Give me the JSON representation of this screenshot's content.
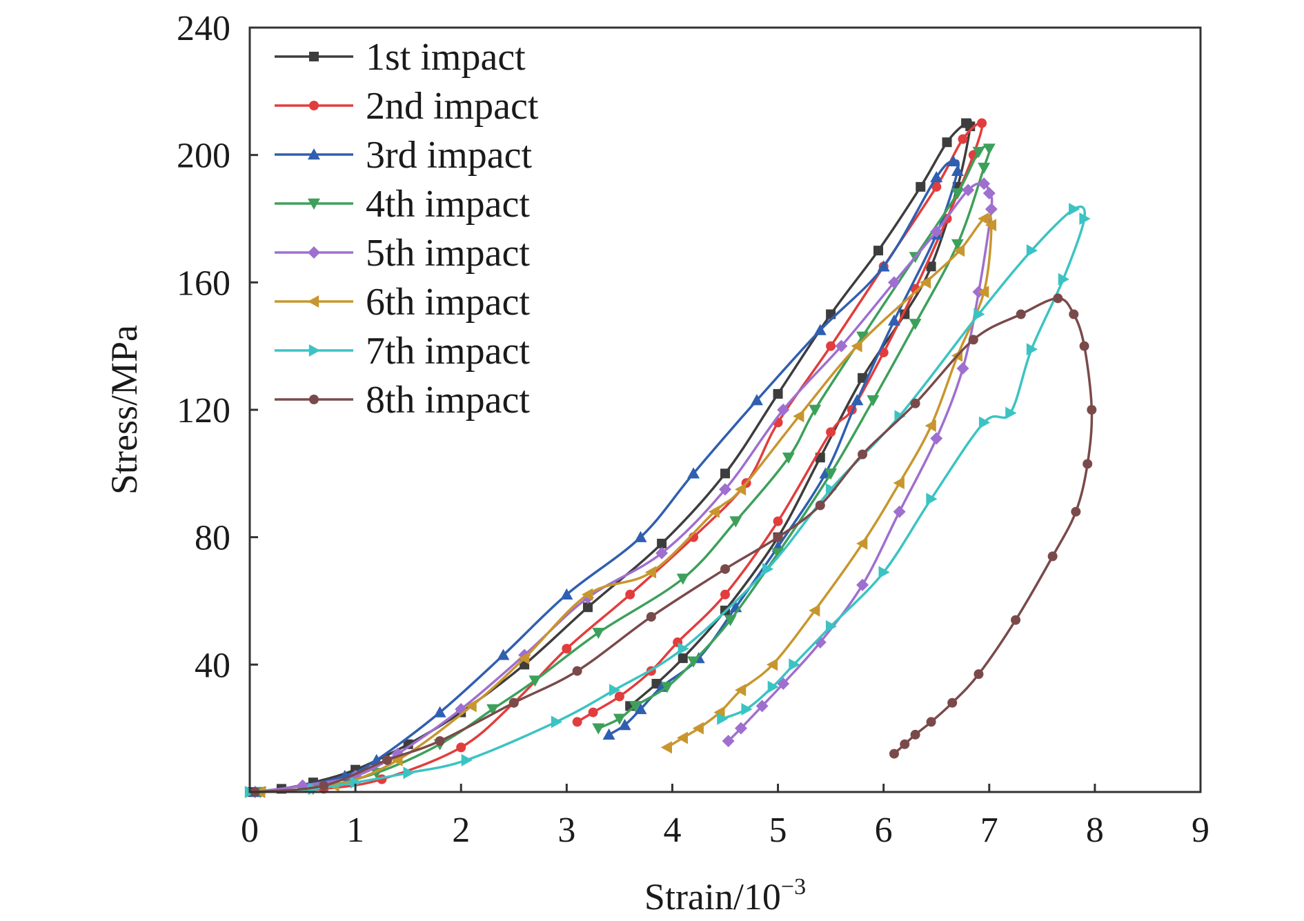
{
  "chart_data": {
    "type": "line",
    "xlabel": "Strain/10",
    "xlabel_exponent": "−3",
    "ylabel": "Stress/MPa",
    "xlim": [
      0,
      9
    ],
    "ylim": [
      0,
      240
    ],
    "xticks": [
      "0",
      "1",
      "2",
      "3",
      "4",
      "5",
      "6",
      "7",
      "8",
      "9"
    ],
    "yticks": [
      "40",
      "80",
      "120",
      "160",
      "200",
      "240"
    ],
    "grid": false,
    "legend_position": "top-left",
    "series": [
      {
        "name": "1st impact",
        "color": "#3d3d3d",
        "marker": "square",
        "points": [
          [
            0.0,
            0.0
          ],
          [
            0.3,
            1.0
          ],
          [
            0.6,
            3.0
          ],
          [
            1.0,
            7.0
          ],
          [
            1.5,
            15.0
          ],
          [
            2.0,
            25.0
          ],
          [
            2.6,
            40.0
          ],
          [
            3.2,
            58.0
          ],
          [
            3.9,
            78.0
          ],
          [
            4.5,
            100.0
          ],
          [
            5.0,
            125.0
          ],
          [
            5.5,
            150.0
          ],
          [
            5.95,
            170.0
          ],
          [
            6.35,
            190.0
          ],
          [
            6.6,
            204.0
          ],
          [
            6.78,
            210.0
          ],
          [
            6.82,
            209.0
          ],
          [
            6.7,
            190.0
          ],
          [
            6.45,
            165.0
          ],
          [
            6.2,
            150.0
          ],
          [
            5.8,
            130.0
          ],
          [
            5.4,
            105.0
          ],
          [
            5.0,
            80.0
          ],
          [
            4.5,
            57.0
          ],
          [
            4.1,
            42.0
          ],
          [
            3.85,
            34.0
          ],
          [
            3.6,
            27.0
          ]
        ]
      },
      {
        "name": "2nd impact",
        "color": "#e23d3d",
        "marker": "circle",
        "points": [
          [
            0.1,
            0.0
          ],
          [
            0.7,
            1.0
          ],
          [
            1.25,
            4.0
          ],
          [
            2.0,
            14.0
          ],
          [
            2.5,
            28.0
          ],
          [
            3.0,
            45.0
          ],
          [
            3.6,
            62.0
          ],
          [
            4.2,
            80.0
          ],
          [
            4.7,
            97.0
          ],
          [
            5.0,
            116.0
          ],
          [
            5.5,
            140.0
          ],
          [
            6.0,
            165.0
          ],
          [
            6.5,
            190.0
          ],
          [
            6.75,
            205.0
          ],
          [
            6.93,
            210.0
          ],
          [
            6.85,
            200.0
          ],
          [
            6.6,
            180.0
          ],
          [
            6.3,
            158.0
          ],
          [
            6.0,
            138.0
          ],
          [
            5.7,
            120.0
          ],
          [
            5.5,
            113.0
          ],
          [
            5.0,
            85.0
          ],
          [
            4.5,
            62.0
          ],
          [
            4.05,
            47.0
          ],
          [
            3.8,
            38.0
          ],
          [
            3.5,
            30.0
          ],
          [
            3.25,
            25.0
          ],
          [
            3.1,
            22.0
          ]
        ]
      },
      {
        "name": "3rd impact",
        "color": "#2f5fb0",
        "marker": "triangle-up",
        "points": [
          [
            0.05,
            0.0
          ],
          [
            0.5,
            2.0
          ],
          [
            0.9,
            5.0
          ],
          [
            1.2,
            10.0
          ],
          [
            1.8,
            25.0
          ],
          [
            2.4,
            43.0
          ],
          [
            3.0,
            62.0
          ],
          [
            3.7,
            80.0
          ],
          [
            4.2,
            100.0
          ],
          [
            4.8,
            123.0
          ],
          [
            5.4,
            145.0
          ],
          [
            6.0,
            165.0
          ],
          [
            6.5,
            193.0
          ],
          [
            6.66,
            198.0
          ],
          [
            6.7,
            195.0
          ],
          [
            6.5,
            175.0
          ],
          [
            6.1,
            148.0
          ],
          [
            5.75,
            123.0
          ],
          [
            5.45,
            100.0
          ],
          [
            5.0,
            77.0
          ],
          [
            4.6,
            58.0
          ],
          [
            4.25,
            42.0
          ],
          [
            3.9,
            33.0
          ],
          [
            3.7,
            26.0
          ],
          [
            3.55,
            21.0
          ],
          [
            3.4,
            18.0
          ]
        ]
      },
      {
        "name": "4th impact",
        "color": "#3da05a",
        "marker": "triangle-down",
        "points": [
          [
            0.1,
            0.0
          ],
          [
            0.6,
            1.0
          ],
          [
            1.2,
            6.0
          ],
          [
            1.8,
            15.0
          ],
          [
            2.3,
            26.0
          ],
          [
            2.7,
            35.0
          ],
          [
            3.3,
            50.0
          ],
          [
            4.1,
            67.0
          ],
          [
            4.6,
            85.0
          ],
          [
            5.1,
            105.0
          ],
          [
            5.35,
            120.0
          ],
          [
            5.8,
            143.0
          ],
          [
            6.3,
            168.0
          ],
          [
            6.7,
            188.0
          ],
          [
            6.9,
            201.0
          ],
          [
            7.0,
            202.0
          ],
          [
            6.95,
            196.0
          ],
          [
            6.7,
            172.0
          ],
          [
            6.3,
            147.0
          ],
          [
            5.9,
            123.0
          ],
          [
            5.5,
            100.0
          ],
          [
            5.0,
            75.0
          ],
          [
            4.55,
            54.0
          ],
          [
            4.2,
            41.0
          ],
          [
            3.95,
            33.0
          ],
          [
            3.65,
            27.0
          ],
          [
            3.5,
            23.0
          ],
          [
            3.3,
            20.0
          ]
        ]
      },
      {
        "name": "5th impact",
        "color": "#9f6fcf",
        "marker": "diamond",
        "points": [
          [
            0.05,
            0.0
          ],
          [
            0.5,
            2.0
          ],
          [
            1.0,
            5.0
          ],
          [
            1.4,
            12.0
          ],
          [
            2.0,
            26.0
          ],
          [
            2.6,
            43.0
          ],
          [
            3.2,
            61.0
          ],
          [
            3.9,
            75.0
          ],
          [
            4.5,
            95.0
          ],
          [
            5.05,
            120.0
          ],
          [
            5.6,
            140.0
          ],
          [
            6.1,
            160.0
          ],
          [
            6.5,
            176.0
          ],
          [
            6.8,
            189.0
          ],
          [
            6.95,
            191.0
          ],
          [
            7.0,
            188.0
          ],
          [
            7.02,
            183.0
          ],
          [
            6.9,
            157.0
          ],
          [
            6.75,
            133.0
          ],
          [
            6.5,
            111.0
          ],
          [
            6.15,
            88.0
          ],
          [
            5.8,
            65.0
          ],
          [
            5.4,
            47.0
          ],
          [
            5.05,
            34.0
          ],
          [
            4.85,
            27.0
          ],
          [
            4.65,
            20.0
          ],
          [
            4.53,
            16.0
          ]
        ]
      },
      {
        "name": "6th impact",
        "color": "#c8962e",
        "marker": "triangle-left",
        "points": [
          [
            0.1,
            0.0
          ],
          [
            0.8,
            2.0
          ],
          [
            1.4,
            10.0
          ],
          [
            2.1,
            27.0
          ],
          [
            2.6,
            42.0
          ],
          [
            3.2,
            62.0
          ],
          [
            3.8,
            69.0
          ],
          [
            4.4,
            88.0
          ],
          [
            4.65,
            95.0
          ],
          [
            5.2,
            118.0
          ],
          [
            5.75,
            140.0
          ],
          [
            6.4,
            160.0
          ],
          [
            6.72,
            170.0
          ],
          [
            6.95,
            180.0
          ],
          [
            7.02,
            178.0
          ],
          [
            6.95,
            157.0
          ],
          [
            6.7,
            137.0
          ],
          [
            6.45,
            115.0
          ],
          [
            6.15,
            97.0
          ],
          [
            5.8,
            78.0
          ],
          [
            5.35,
            57.0
          ],
          [
            4.95,
            40.0
          ],
          [
            4.65,
            32.0
          ],
          [
            4.45,
            25.0
          ],
          [
            4.25,
            20.0
          ],
          [
            4.1,
            17.0
          ],
          [
            3.95,
            14.0
          ]
        ]
      },
      {
        "name": "7th impact",
        "color": "#3bc3c3",
        "marker": "triangle-right",
        "points": [
          [
            0.0,
            0.0
          ],
          [
            0.6,
            1.0
          ],
          [
            1.0,
            3.0
          ],
          [
            1.5,
            6.0
          ],
          [
            2.05,
            10.0
          ],
          [
            2.9,
            22.0
          ],
          [
            3.45,
            32.0
          ],
          [
            4.1,
            45.0
          ],
          [
            4.9,
            70.0
          ],
          [
            5.5,
            95.0
          ],
          [
            6.15,
            118.0
          ],
          [
            6.9,
            150.0
          ],
          [
            7.4,
            170.0
          ],
          [
            7.8,
            183.0
          ],
          [
            7.9,
            180.0
          ],
          [
            7.7,
            161.0
          ],
          [
            7.4,
            139.0
          ],
          [
            7.2,
            119.0
          ],
          [
            6.95,
            116.0
          ],
          [
            6.45,
            92.0
          ],
          [
            6.0,
            69.0
          ],
          [
            5.5,
            52.0
          ],
          [
            5.15,
            40.0
          ],
          [
            4.95,
            33.0
          ],
          [
            4.7,
            26.0
          ],
          [
            4.47,
            23.0
          ]
        ]
      },
      {
        "name": "8th impact",
        "color": "#7a4a4a",
        "marker": "circle",
        "points": [
          [
            0.05,
            0.0
          ],
          [
            0.7,
            2.0
          ],
          [
            1.3,
            10.0
          ],
          [
            1.8,
            16.0
          ],
          [
            2.5,
            28.0
          ],
          [
            3.1,
            38.0
          ],
          [
            3.8,
            55.0
          ],
          [
            4.5,
            70.0
          ],
          [
            5.0,
            80.0
          ],
          [
            5.4,
            90.0
          ],
          [
            5.8,
            106.0
          ],
          [
            6.3,
            122.0
          ],
          [
            6.85,
            142.0
          ],
          [
            7.3,
            150.0
          ],
          [
            7.65,
            155.0
          ],
          [
            7.8,
            150.0
          ],
          [
            7.9,
            140.0
          ],
          [
            7.97,
            120.0
          ],
          [
            7.93,
            103.0
          ],
          [
            7.82,
            88.0
          ],
          [
            7.6,
            74.0
          ],
          [
            7.25,
            54.0
          ],
          [
            6.9,
            37.0
          ],
          [
            6.65,
            28.0
          ],
          [
            6.45,
            22.0
          ],
          [
            6.3,
            18.0
          ],
          [
            6.2,
            15.0
          ],
          [
            6.1,
            12.0
          ]
        ]
      }
    ]
  }
}
